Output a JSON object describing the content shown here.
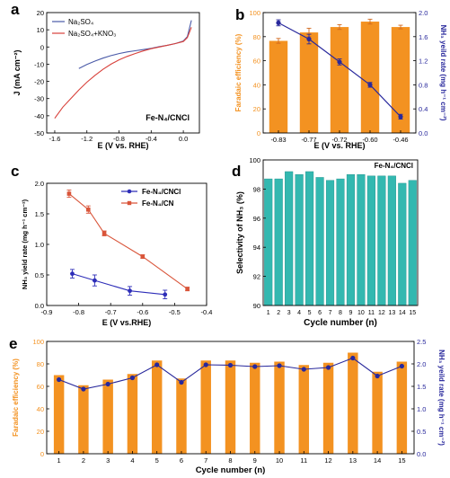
{
  "colors": {
    "orange": "#f39221",
    "navy": "#28289c",
    "blue_line": "#2d2db8",
    "red": "#d9553a",
    "teal": "#33b8b0",
    "na2so4": "#4a5aa8",
    "kno3": "#d8403a"
  },
  "chart_data": [
    {
      "panel": "a",
      "type": "line",
      "xlabel": "E (V vs. RHE)",
      "ylabel": "J (mA cm⁻²)",
      "xlim": [
        -1.7,
        0.2
      ],
      "ylim": [
        -50,
        20
      ],
      "xticks": [
        -1.6,
        -1.2,
        -0.8,
        -0.4,
        0.0
      ],
      "xtick_labels": [
        "-1.6",
        "-1.2",
        "-0.8",
        "-0.4",
        "0.0"
      ],
      "yticks": [
        -50,
        -40,
        -30,
        -20,
        -10,
        0,
        10,
        20
      ],
      "ytick_labels": [
        "-50",
        "-40",
        "-30",
        "-20",
        "-10",
        "0",
        "10",
        "20"
      ],
      "annotation": "Fe-N₄/CNCl",
      "series": [
        {
          "name": "Na₂SO₄",
          "color_key": "na2so4",
          "x": [
            -1.3,
            -1.2,
            -1.1,
            -1.0,
            -0.9,
            -0.8,
            -0.7,
            -0.6,
            -0.5,
            -0.4,
            -0.3,
            -0.2,
            -0.1,
            0.0,
            0.05,
            0.1
          ],
          "y": [
            -12.5,
            -10.2,
            -8.2,
            -6.5,
            -5.0,
            -3.8,
            -2.9,
            -2.2,
            -1.5,
            -0.8,
            0.2,
            1.0,
            2.0,
            3.5,
            6.0,
            15.5
          ]
        },
        {
          "name": "Na₂SO₄+KNO₃",
          "color_key": "kno3",
          "x": [
            -1.6,
            -1.5,
            -1.4,
            -1.3,
            -1.2,
            -1.1,
            -1.0,
            -0.9,
            -0.8,
            -0.7,
            -0.6,
            -0.5,
            -0.4,
            -0.3,
            -0.2,
            -0.1,
            0.0,
            0.05,
            0.1
          ],
          "y": [
            -41.5,
            -35,
            -30,
            -25,
            -20.5,
            -16.5,
            -13,
            -10,
            -7.5,
            -5.5,
            -3.8,
            -2.3,
            -1.0,
            0.0,
            1.0,
            2.0,
            3.2,
            5.5,
            11.5
          ]
        }
      ]
    },
    {
      "panel": "b",
      "type": "bar",
      "xlabel": "E (V vs. RHE)",
      "ylabel": "Faradaic efficiency (%)",
      "ylabel2": "NH₃ yeild rate (mg h⁻¹ cm⁻²)",
      "categories": [
        "-0.83",
        "-0.77",
        "-0.72",
        "-0.60",
        "-0.46"
      ],
      "bar_values": [
        76.5,
        83.5,
        88,
        92.5,
        88
      ],
      "bar_errors": [
        2.0,
        3.5,
        2.0,
        2.0,
        1.5
      ],
      "line_values": [
        1.83,
        1.56,
        1.18,
        0.8,
        0.27
      ],
      "line_errors": [
        0.05,
        0.08,
        0.05,
        0.04,
        0.04
      ],
      "ylim": [
        0,
        100
      ],
      "ylim2": [
        0,
        2.0
      ],
      "yticks": [
        0,
        20,
        40,
        60,
        80,
        100
      ],
      "ytick_labels": [
        "0",
        "20",
        "40",
        "60",
        "80",
        "100"
      ],
      "y2ticks": [
        0,
        0.4,
        0.8,
        1.2,
        1.6,
        2.0
      ],
      "y2tick_labels": [
        "0.0",
        "0.4",
        "0.8",
        "1.2",
        "1.6",
        "2.0"
      ]
    },
    {
      "panel": "c",
      "type": "line",
      "xlabel": "E (V vs.RHE)",
      "ylabel": "NH₃ yield rate (mg h⁻¹ cm⁻²)",
      "xlim": [
        -0.9,
        -0.4
      ],
      "ylim": [
        0,
        2.0
      ],
      "xticks": [
        -0.9,
        -0.8,
        -0.7,
        -0.6,
        -0.5,
        -0.4
      ],
      "xtick_labels": [
        "-0.9",
        "-0.8",
        "-0.7",
        "-0.6",
        "-0.5",
        "-0.4"
      ],
      "yticks": [
        0,
        0.5,
        1.0,
        1.5,
        2.0
      ],
      "ytick_labels": [
        "0.0",
        "0.5",
        "1.0",
        "1.5",
        "2.0"
      ],
      "series": [
        {
          "name": "Fe-N₄/CNCl",
          "color_key": "blue_line",
          "x": [
            -0.82,
            -0.75,
            -0.64,
            -0.53
          ],
          "y": [
            0.52,
            0.41,
            0.24,
            0.18
          ],
          "err": [
            0.07,
            0.09,
            0.07,
            0.07
          ]
        },
        {
          "name": "Fe-N₄/CN",
          "color_key": "red",
          "x": [
            -0.83,
            -0.77,
            -0.72,
            -0.6,
            -0.46
          ],
          "y": [
            1.83,
            1.57,
            1.18,
            0.8,
            0.27
          ],
          "err": [
            0.06,
            0.06,
            0.04,
            0.03,
            0.03
          ]
        }
      ]
    },
    {
      "panel": "d",
      "type": "bar",
      "xlabel": "Cycle number (n)",
      "ylabel": "Selectivity of NH₃ (%)",
      "annotation": "Fe-N₄/CNCl",
      "categories": [
        "1",
        "2",
        "3",
        "4",
        "5",
        "6",
        "7",
        "8",
        "9",
        "10",
        "11",
        "12",
        "13",
        "14",
        "15"
      ],
      "values": [
        98.7,
        98.7,
        99.2,
        99.0,
        99.2,
        98.8,
        98.6,
        98.7,
        99.0,
        99.0,
        98.9,
        98.9,
        98.9,
        98.4,
        98.6
      ],
      "ylim": [
        90,
        100
      ],
      "yticks": [
        90,
        92,
        94,
        96,
        98,
        100
      ],
      "ytick_labels": [
        "90",
        "92",
        "94",
        "96",
        "98",
        "100"
      ]
    },
    {
      "panel": "e",
      "type": "bar",
      "xlabel": "Cycle number (n)",
      "ylabel": "Faradaic efficiency (%)",
      "ylabel2": "NH₃ yeild rate (mg h⁻¹ cm⁻²)",
      "categories": [
        "1",
        "2",
        "3",
        "4",
        "5",
        "6",
        "7",
        "8",
        "9",
        "10",
        "11",
        "12",
        "13",
        "14",
        "15"
      ],
      "bar_values": [
        70,
        61,
        66,
        71,
        83,
        67,
        83,
        83,
        81,
        82,
        79,
        81,
        90,
        73,
        82
      ],
      "line_values": [
        1.65,
        1.44,
        1.55,
        1.69,
        1.98,
        1.59,
        1.98,
        1.97,
        1.94,
        1.96,
        1.88,
        1.92,
        2.13,
        1.73,
        1.95
      ],
      "ylim": [
        0,
        100
      ],
      "ylim2": [
        0,
        2.5
      ],
      "yticks": [
        0,
        20,
        40,
        60,
        80,
        100
      ],
      "ytick_labels": [
        "0",
        "20",
        "40",
        "60",
        "80",
        "100"
      ],
      "y2ticks": [
        0,
        0.5,
        1.0,
        1.5,
        2.0,
        2.5
      ],
      "y2tick_labels": [
        "0.0",
        "0.5",
        "1.0",
        "1.5",
        "2.0",
        "2.5"
      ]
    }
  ]
}
